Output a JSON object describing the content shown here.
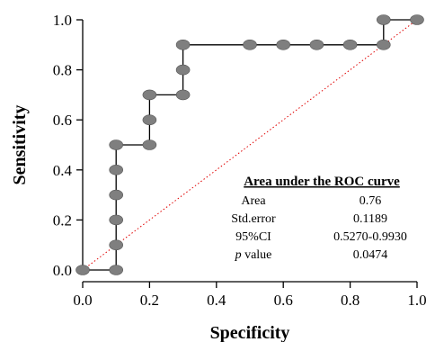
{
  "chart_data": {
    "type": "line",
    "xlabel": "Specificity",
    "ylabel": "Sensitivity",
    "xlim": [
      0.0,
      1.0
    ],
    "ylim": [
      0.0,
      1.0
    ],
    "x_ticks": [
      "0.0",
      "0.2",
      "0.4",
      "0.6",
      "0.8",
      "1.0"
    ],
    "y_ticks": [
      "0.0",
      "0.2",
      "0.4",
      "0.6",
      "0.8",
      "1.0"
    ],
    "grid": false,
    "series": [
      {
        "color": "#000000",
        "marker_color": "#7f7f7f",
        "x": [
          0.0,
          0.1,
          0.1,
          0.1,
          0.1,
          0.1,
          0.1,
          0.2,
          0.2,
          0.2,
          0.3,
          0.3,
          0.3,
          0.5,
          0.6,
          0.7,
          0.8,
          0.9,
          0.9,
          1.0
        ],
        "y": [
          0.0,
          0.0,
          0.1,
          0.2,
          0.3,
          0.4,
          0.5,
          0.5,
          0.6,
          0.7,
          0.7,
          0.8,
          0.9,
          0.9,
          0.9,
          0.9,
          0.9,
          0.9,
          1.0,
          1.0
        ]
      }
    ],
    "reference_line": {
      "x": [
        0.0,
        1.0
      ],
      "y": [
        0.0,
        1.0
      ],
      "color": "#e00000",
      "style": "dotted"
    },
    "annotation_table": {
      "title": "Area under the ROC curve",
      "rows": [
        {
          "label": "Area",
          "value": "0.76"
        },
        {
          "label": "Std.error",
          "value": "0.1189"
        },
        {
          "label": "95%CI",
          "value": "0.5270-0.9930"
        },
        {
          "label_italic": "p",
          "label": " value",
          "value": "0.0474"
        }
      ]
    }
  }
}
